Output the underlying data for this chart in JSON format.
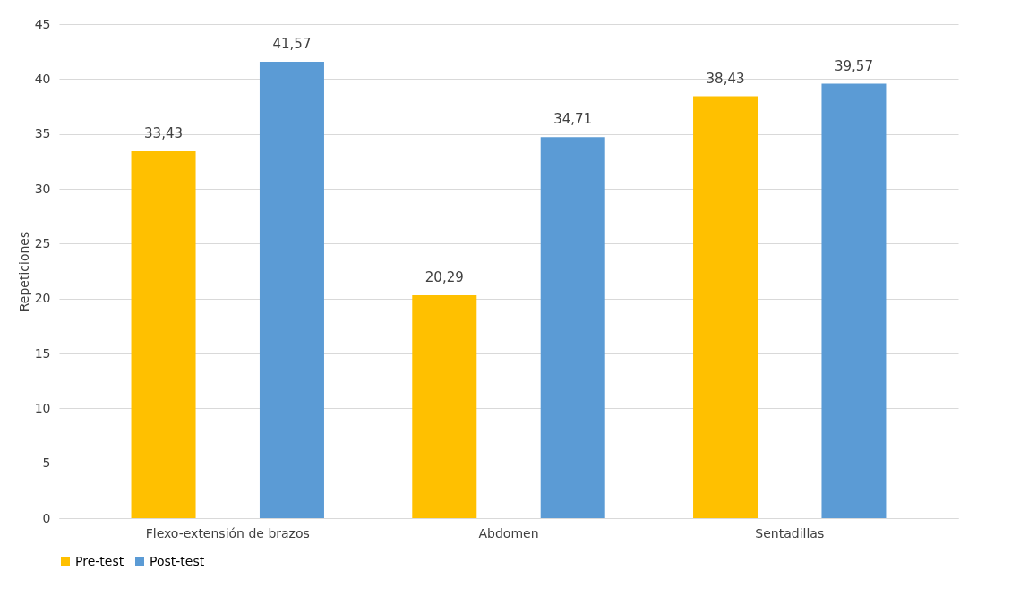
{
  "chart_data": {
    "type": "bar",
    "ylabel": "Repeticiones",
    "categories": [
      "Flexo-extensión de brazos",
      "Abdomen",
      "Sentadillas"
    ],
    "series": [
      {
        "name": "Pre-test",
        "color": "#ffc000",
        "values": [
          33.43,
          20.29,
          38.43
        ],
        "value_labels": [
          "33,43",
          "20,29",
          "38,43"
        ]
      },
      {
        "name": "Post-test",
        "color": "#5b9bd5",
        "values": [
          41.57,
          34.71,
          39.57
        ],
        "value_labels": [
          "41,57",
          "34,71",
          "39,57"
        ]
      }
    ],
    "ylim": [
      0,
      45
    ],
    "yticks": [
      0,
      5,
      10,
      15,
      20,
      25,
      30,
      35,
      40,
      45
    ],
    "grid": "y",
    "legend": "bottom"
  }
}
